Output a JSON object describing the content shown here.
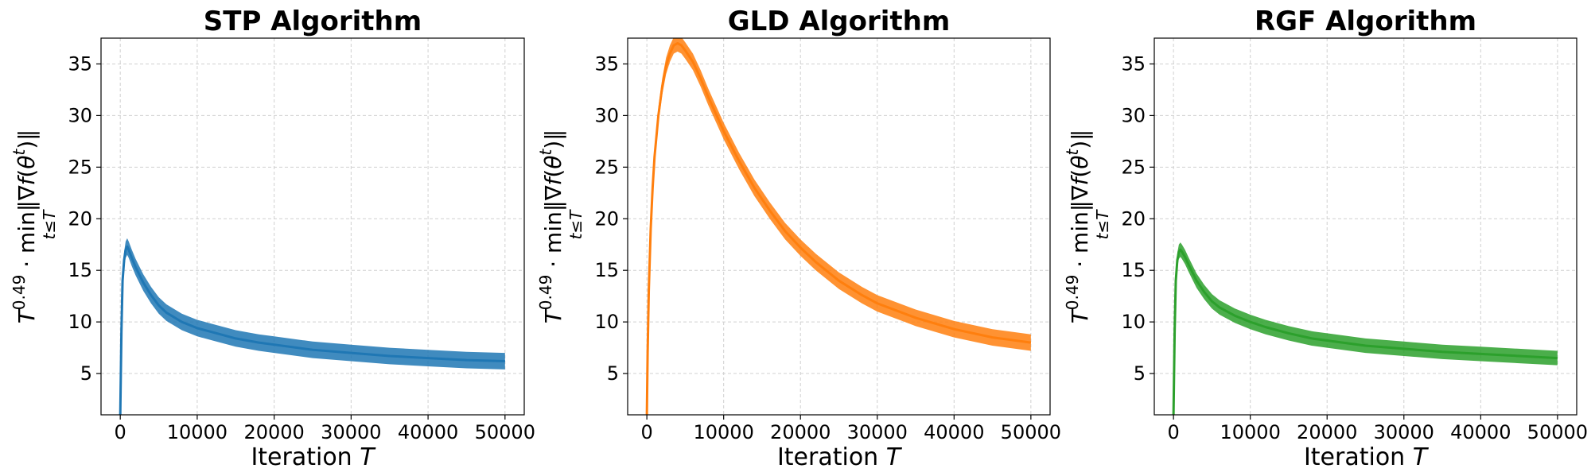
{
  "chart_data": [
    {
      "type": "line",
      "title": "STP Algorithm",
      "xlabel": "Iteration T",
      "ylabel": "T^0.49 · min_{t≤T} ||∇f(θ^t)||",
      "xlim": [
        -2500,
        52500
      ],
      "ylim": [
        1,
        37.5
      ],
      "xticks": [
        0,
        10000,
        20000,
        30000,
        40000,
        50000
      ],
      "yticks": [
        5,
        10,
        15,
        20,
        25,
        30,
        35
      ],
      "grid": true,
      "legend": "none",
      "series": [
        {
          "color": "#1f77b4",
          "band": 0.8,
          "x": [
            0,
            150,
            300,
            500,
            700,
            900,
            1100,
            1500,
            2000,
            3000,
            4000,
            5000,
            6000,
            8000,
            10000,
            12000,
            15000,
            18000,
            20000,
            25000,
            30000,
            35000,
            40000,
            45000,
            50000
          ],
          "y": [
            1,
            9,
            14,
            16,
            17,
            17.3,
            17,
            16.2,
            15.3,
            13.8,
            12.6,
            11.6,
            10.9,
            10,
            9.4,
            9,
            8.4,
            8,
            7.8,
            7.3,
            7,
            6.7,
            6.5,
            6.3,
            6.2
          ]
        }
      ]
    },
    {
      "type": "line",
      "title": "GLD Algorithm",
      "xlabel": "Iteration T",
      "ylabel": "T^0.49 · min_{t≤T} ||∇f(θ^t)||",
      "xlim": [
        -2500,
        52500
      ],
      "ylim": [
        1,
        37.5
      ],
      "xticks": [
        0,
        10000,
        20000,
        30000,
        40000,
        50000
      ],
      "yticks": [
        5,
        10,
        15,
        20,
        25,
        30,
        35
      ],
      "grid": true,
      "legend": "none",
      "series": [
        {
          "color": "#ff7f0e",
          "band": 0.8,
          "x": [
            0,
            100,
            250,
            500,
            750,
            1000,
            1500,
            2000,
            2500,
            3000,
            3500,
            4000,
            4500,
            5000,
            6000,
            7000,
            8000,
            10000,
            12000,
            14000,
            16000,
            18000,
            20000,
            22000,
            25000,
            28000,
            30000,
            35000,
            40000,
            45000,
            50000
          ],
          "y": [
            1,
            7,
            13,
            19,
            23,
            26,
            30,
            32.8,
            34.8,
            36,
            36.8,
            37,
            36.8,
            36.3,
            35.2,
            33.6,
            31.8,
            28.5,
            25.6,
            23,
            20.8,
            18.8,
            17.2,
            15.8,
            14,
            12.6,
            11.8,
            10.4,
            9.3,
            8.5,
            8
          ]
        }
      ]
    },
    {
      "type": "line",
      "title": "RGF Algorithm",
      "xlabel": "Iteration T",
      "ylabel": "T^0.49 · min_{t≤T} ||∇f(θ^t)||",
      "xlim": [
        -2500,
        52500
      ],
      "ylim": [
        1,
        37.5
      ],
      "xticks": [
        0,
        10000,
        20000,
        30000,
        40000,
        50000
      ],
      "yticks": [
        5,
        10,
        15,
        20,
        25,
        30,
        35
      ],
      "grid": true,
      "legend": "none",
      "series": [
        {
          "color": "#2ca02c",
          "band": 0.7,
          "x": [
            0,
            150,
            300,
            500,
            700,
            900,
            1100,
            1500,
            2000,
            3000,
            4000,
            5000,
            6000,
            8000,
            10000,
            12000,
            15000,
            18000,
            20000,
            25000,
            30000,
            35000,
            40000,
            45000,
            50000
          ],
          "y": [
            1,
            9,
            14,
            16,
            16.8,
            17,
            16.8,
            16.3,
            15.5,
            14,
            12.9,
            12,
            11.4,
            10.6,
            10,
            9.5,
            8.9,
            8.4,
            8.2,
            7.7,
            7.4,
            7.1,
            6.9,
            6.7,
            6.5
          ]
        }
      ]
    }
  ]
}
